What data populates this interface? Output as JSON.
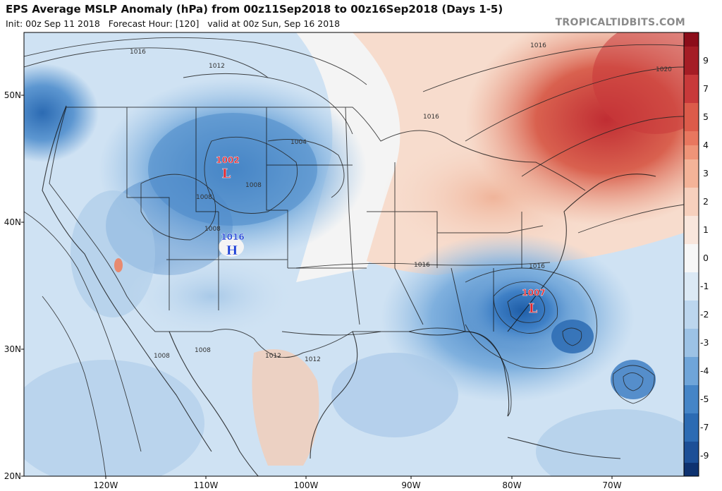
{
  "header": {
    "title": "EPS Average MSLP Anomaly (hPa) from 00z11Sep2018 to 00z16Sep2018 (Days 1-5)",
    "init": "Init: 00z Sep 11 2018",
    "forecast_hour": "Forecast Hour: [120]",
    "valid": "valid at 00z Sun, Sep 16 2018",
    "brand": "TROPICALTIDBITS.COM"
  },
  "colors": {
    "strong_negative": "#2c6bb3",
    "negative": "#6fa5d9",
    "weak_negative": "#c7ddf0",
    "neutral": "#f7f7f7",
    "weak_positive": "#f7d4c0",
    "positive": "#e88a70",
    "strong_positive": "#c8393a",
    "high_marker": "#1c3fd6",
    "low_marker": "#e0222a"
  },
  "latitude_labels": [
    "50N",
    "40N",
    "30N",
    "20N"
  ],
  "longitude_labels": [
    "120W",
    "110W",
    "100W",
    "90W",
    "80W",
    "70W"
  ],
  "colorbar": {
    "ticks": [
      "9",
      "7",
      "5",
      "4",
      "3",
      "2",
      "1",
      "0",
      "-1",
      "-2",
      "-3",
      "-4",
      "-5",
      "-7",
      "-9"
    ]
  },
  "pressure_centers": [
    {
      "type": "L",
      "value": "1002"
    },
    {
      "type": "H",
      "value": "1016"
    },
    {
      "type": "L",
      "value": "1007"
    }
  ],
  "isobar_labels": [
    "1016",
    "1012",
    "1008",
    "1004",
    "1008",
    "1008",
    "1016",
    "1016",
    "1016",
    "1016",
    "1020",
    "1012",
    "1012",
    "1008",
    "1008"
  ]
}
